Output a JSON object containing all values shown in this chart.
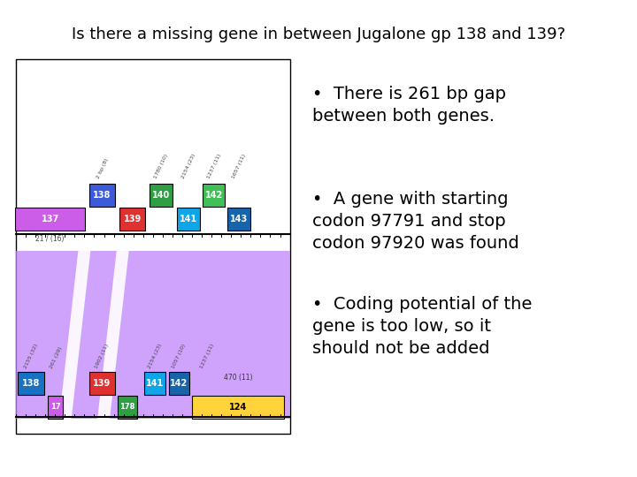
{
  "title": "Is there a missing gene in between Jugalone gp 138 and 139?",
  "title_fontsize": 13,
  "background_color": "#ffffff",
  "bullet_points": [
    "There is 261 bp gap\nbetween both genes.",
    "A gene with starting\ncodon 97791 and stop\ncodon 97920 was found",
    "Coding potential of the\ngene is too low, so it\nshould not be added"
  ],
  "bullet_fontsize": 14
}
